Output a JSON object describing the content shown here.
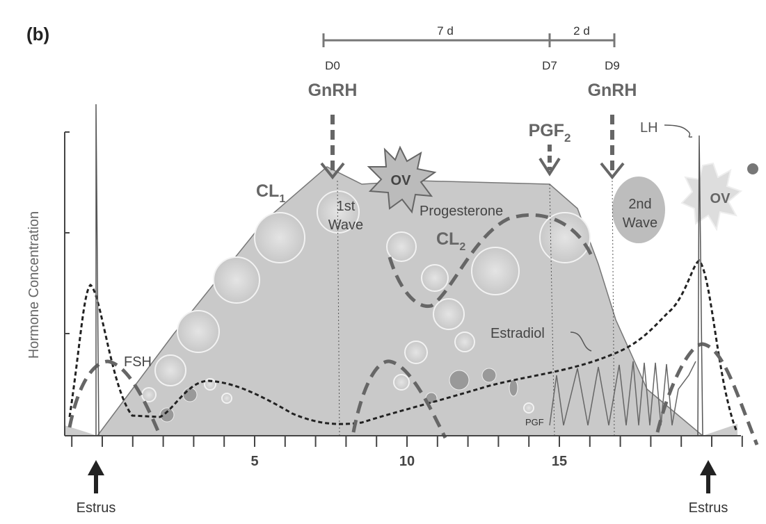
{
  "panel_label": "(b)",
  "timeline": {
    "span_1": "7 d",
    "span_2": "2 d",
    "days": [
      "D0",
      "D7",
      "D9"
    ]
  },
  "treatments": [
    {
      "label": "GnRH"
    },
    {
      "label": "PGF",
      "subscript": "2"
    },
    {
      "label": "GnRH"
    }
  ],
  "labels": {
    "lh": "LH",
    "ov_1": "OV",
    "ov_2": "OV",
    "cl_1": {
      "text": "CL",
      "subscript": "1"
    },
    "cl_2": {
      "text": "CL",
      "subscript": "2"
    },
    "wave_1": [
      "1st",
      "Wave"
    ],
    "wave_2": [
      "2nd",
      "Wave"
    ],
    "progesterone": "Progesterone",
    "estradiol": "Estradiol",
    "fsh": "FSH",
    "pgf": "PGF"
  },
  "axis": {
    "y_label": "Hormone Concentration",
    "x_ticks": [
      5,
      10,
      15
    ]
  },
  "estrus": [
    "Estrus",
    "Estrus"
  ]
}
